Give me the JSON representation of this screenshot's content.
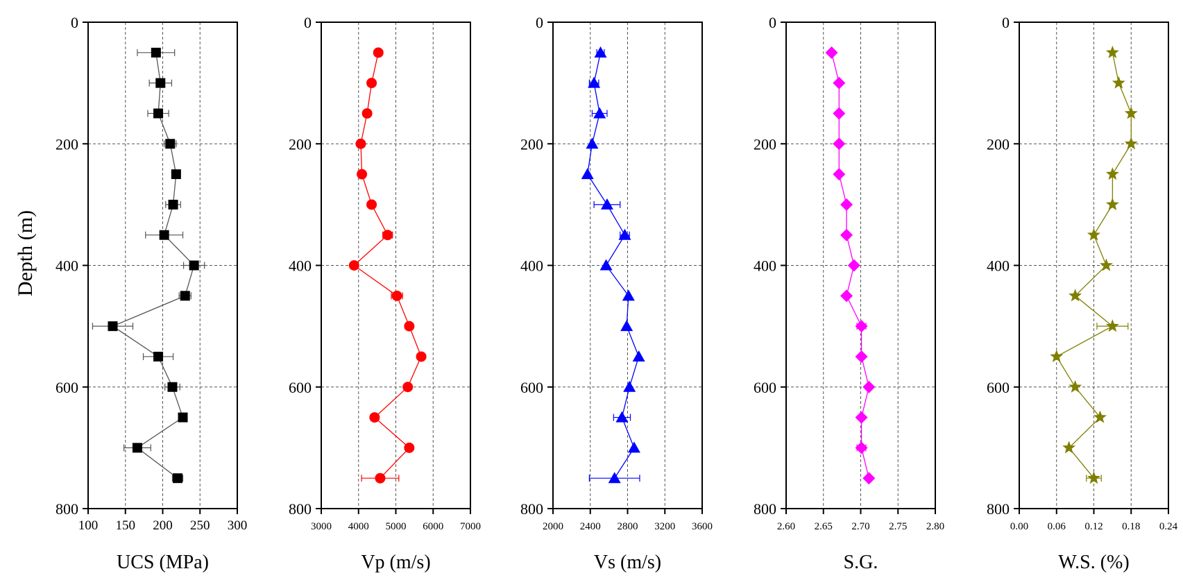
{
  "y_axis": {
    "label": "Depth (m)",
    "range": [
      0,
      800
    ],
    "ticks": [
      0,
      200,
      400,
      600,
      800
    ],
    "inverted": true,
    "grid": true
  },
  "chart_data": [
    {
      "type": "scatter",
      "xlabel": "UCS (MPa)",
      "xlim": [
        100,
        300
      ],
      "xticks": [
        100,
        150,
        200,
        250,
        300
      ],
      "xtick_labels": [
        "100",
        "150",
        "200",
        "250",
        "300"
      ],
      "vgrid_values": [
        150,
        200,
        250
      ],
      "color": "#000000",
      "line_color": "#555555",
      "marker": "square",
      "points": [
        {
          "depth": 50,
          "value": 191,
          "err": 25
        },
        {
          "depth": 100,
          "value": 197,
          "err": 15
        },
        {
          "depth": 150,
          "value": 194,
          "err": 14
        },
        {
          "depth": 200,
          "value": 210,
          "err": 8
        },
        {
          "depth": 250,
          "value": 218,
          "err": 0
        },
        {
          "depth": 300,
          "value": 214,
          "err": 10
        },
        {
          "depth": 350,
          "value": 202,
          "err": 25
        },
        {
          "depth": 400,
          "value": 242,
          "err": 14
        },
        {
          "depth": 450,
          "value": 230,
          "err": 8
        },
        {
          "depth": 500,
          "value": 133,
          "err": 27
        },
        {
          "depth": 550,
          "value": 194,
          "err": 20
        },
        {
          "depth": 600,
          "value": 213,
          "err": 10
        },
        {
          "depth": 650,
          "value": 227,
          "err": 0
        },
        {
          "depth": 700,
          "value": 166,
          "err": 18
        },
        {
          "depth": 750,
          "value": 220,
          "err": 7
        }
      ]
    },
    {
      "type": "scatter",
      "xlabel": "Vp (m/s)",
      "xlim": [
        3000,
        7000
      ],
      "xticks": [
        3000,
        4000,
        5000,
        6000,
        7000
      ],
      "xtick_labels": [
        "3000",
        "4000",
        "5000",
        "6000",
        "7000"
      ],
      "vgrid_values": [
        4000,
        5000,
        6000
      ],
      "color": "#ff0000",
      "line_color": "#ff0000",
      "marker": "circle",
      "points": [
        {
          "depth": 50,
          "value": 4530,
          "err": 0
        },
        {
          "depth": 100,
          "value": 4350,
          "err": 0
        },
        {
          "depth": 150,
          "value": 4230,
          "err": 0
        },
        {
          "depth": 200,
          "value": 4060,
          "err": 0
        },
        {
          "depth": 250,
          "value": 4090,
          "err": 0
        },
        {
          "depth": 300,
          "value": 4350,
          "err": 0
        },
        {
          "depth": 350,
          "value": 4780,
          "err": 130
        },
        {
          "depth": 400,
          "value": 3880,
          "err": 0
        },
        {
          "depth": 450,
          "value": 5030,
          "err": 150
        },
        {
          "depth": 500,
          "value": 5360,
          "err": 0
        },
        {
          "depth": 550,
          "value": 5680,
          "err": 0
        },
        {
          "depth": 600,
          "value": 5320,
          "err": 0
        },
        {
          "depth": 650,
          "value": 4430,
          "err": 0
        },
        {
          "depth": 700,
          "value": 5360,
          "err": 0
        },
        {
          "depth": 750,
          "value": 4580,
          "err": 500
        }
      ]
    },
    {
      "type": "scatter",
      "xlabel": "Vs (m/s)",
      "xlim": [
        2000,
        3600
      ],
      "xticks": [
        2000,
        2400,
        2800,
        3200,
        3600
      ],
      "xtick_labels": [
        "2000",
        "2400",
        "2800",
        "3200",
        "3600"
      ],
      "vgrid_values": [
        2400,
        2800,
        3200
      ],
      "color": "#0000ff",
      "line_color": "#0000ff",
      "marker": "triangle",
      "points": [
        {
          "depth": 50,
          "value": 2510,
          "err": 40
        },
        {
          "depth": 100,
          "value": 2440,
          "err": 50
        },
        {
          "depth": 150,
          "value": 2500,
          "err": 80
        },
        {
          "depth": 200,
          "value": 2420,
          "err": 0
        },
        {
          "depth": 250,
          "value": 2370,
          "err": 0
        },
        {
          "depth": 300,
          "value": 2580,
          "err": 140
        },
        {
          "depth": 350,
          "value": 2770,
          "err": 50
        },
        {
          "depth": 400,
          "value": 2570,
          "err": 0
        },
        {
          "depth": 450,
          "value": 2810,
          "err": 0
        },
        {
          "depth": 500,
          "value": 2790,
          "err": 0
        },
        {
          "depth": 550,
          "value": 2920,
          "err": 0
        },
        {
          "depth": 600,
          "value": 2820,
          "err": 0
        },
        {
          "depth": 650,
          "value": 2740,
          "err": 90
        },
        {
          "depth": 700,
          "value": 2870,
          "err": 0
        },
        {
          "depth": 750,
          "value": 2660,
          "err": 270
        }
      ]
    },
    {
      "type": "scatter",
      "xlabel": "S.G.",
      "xlim": [
        2.6,
        2.8
      ],
      "xticks": [
        2.6,
        2.65,
        2.7,
        2.75,
        2.8
      ],
      "xtick_labels": [
        "2.60",
        "2.65",
        "2.70",
        "2.75",
        "2.80"
      ],
      "vgrid_values": [
        2.65,
        2.7,
        2.75
      ],
      "color": "#ff00ff",
      "line_color": "#ff00ff",
      "marker": "diamond",
      "points": [
        {
          "depth": 50,
          "value": 2.661,
          "err": 0
        },
        {
          "depth": 100,
          "value": 2.671,
          "err": 0
        },
        {
          "depth": 150,
          "value": 2.671,
          "err": 0
        },
        {
          "depth": 200,
          "value": 2.671,
          "err": 0
        },
        {
          "depth": 250,
          "value": 2.671,
          "err": 0
        },
        {
          "depth": 300,
          "value": 2.681,
          "err": 0
        },
        {
          "depth": 350,
          "value": 2.681,
          "err": 0
        },
        {
          "depth": 400,
          "value": 2.691,
          "err": 0
        },
        {
          "depth": 450,
          "value": 2.681,
          "err": 0
        },
        {
          "depth": 500,
          "value": 2.701,
          "err": 0.006
        },
        {
          "depth": 550,
          "value": 2.701,
          "err": 0
        },
        {
          "depth": 600,
          "value": 2.711,
          "err": 0
        },
        {
          "depth": 650,
          "value": 2.701,
          "err": 0
        },
        {
          "depth": 700,
          "value": 2.701,
          "err": 0.006
        },
        {
          "depth": 750,
          "value": 2.711,
          "err": 0
        }
      ]
    },
    {
      "type": "scatter",
      "xlabel": "W.S. (%)",
      "xlim": [
        0.0,
        0.24
      ],
      "xticks": [
        0.0,
        0.06,
        0.12,
        0.18,
        0.24
      ],
      "xtick_labels": [
        "0.00",
        "0.06",
        "0.12",
        "0.18",
        "0.24"
      ],
      "vgrid_values": [
        0.06,
        0.12,
        0.18
      ],
      "color": "#7f7f00",
      "line_color": "#7f7f00",
      "marker": "star",
      "points": [
        {
          "depth": 50,
          "value": 0.15,
          "err": 0
        },
        {
          "depth": 100,
          "value": 0.16,
          "err": 0
        },
        {
          "depth": 150,
          "value": 0.18,
          "err": 0
        },
        {
          "depth": 200,
          "value": 0.18,
          "err": 0
        },
        {
          "depth": 250,
          "value": 0.15,
          "err": 0
        },
        {
          "depth": 300,
          "value": 0.15,
          "err": 0
        },
        {
          "depth": 350,
          "value": 0.12,
          "err": 0
        },
        {
          "depth": 400,
          "value": 0.14,
          "err": 0
        },
        {
          "depth": 450,
          "value": 0.09,
          "err": 0
        },
        {
          "depth": 500,
          "value": 0.15,
          "err": 0.025
        },
        {
          "depth": 550,
          "value": 0.06,
          "err": 0
        },
        {
          "depth": 600,
          "value": 0.09,
          "err": 0
        },
        {
          "depth": 650,
          "value": 0.13,
          "err": 0
        },
        {
          "depth": 700,
          "value": 0.08,
          "err": 0
        },
        {
          "depth": 750,
          "value": 0.12,
          "err": 0.012
        }
      ]
    }
  ]
}
